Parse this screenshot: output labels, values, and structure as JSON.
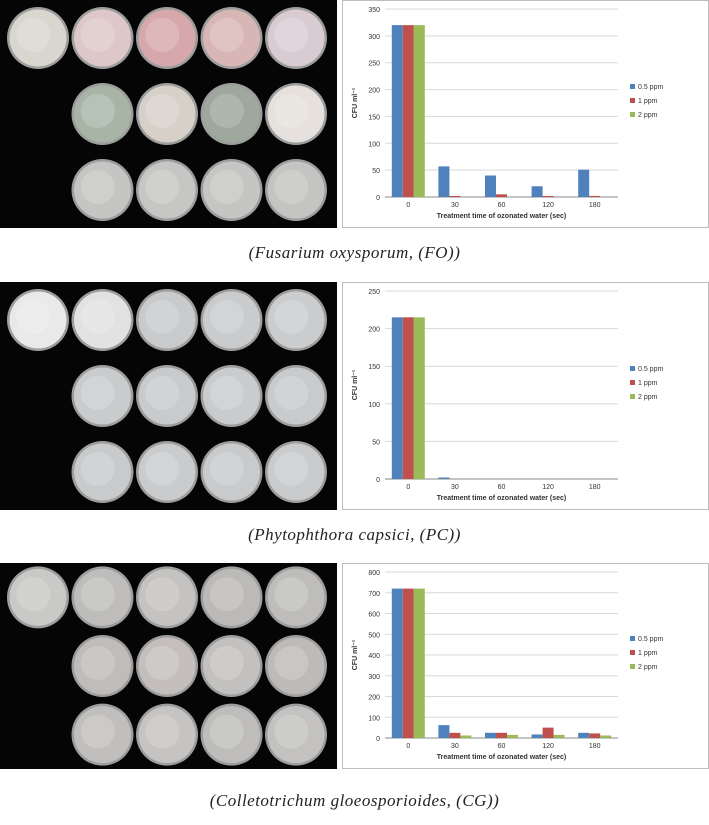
{
  "legend": [
    "0.5 ppm",
    "1 ppm",
    "2 ppm"
  ],
  "colors": {
    "series": [
      "#4f81bd",
      "#c0504d",
      "#9bbb59"
    ],
    "grid": "#d9d9d9",
    "plate_bg": "#050505"
  },
  "panels": [
    {
      "caption": "(Fusarium oxysporum, (FO))",
      "photo_icon": "petri-dish-plates-photo"
    },
    {
      "caption": "(Phytophthora capsici, (PC))",
      "photo_icon": "petri-dish-plates-photo"
    },
    {
      "caption": "(Colletotrichum gloeosporioides, (CG))",
      "photo_icon": "petri-dish-plates-photo"
    }
  ],
  "chart_data": [
    {
      "type": "bar",
      "categories": [
        "0",
        "30",
        "60",
        "120",
        "180"
      ],
      "ylabel": "CFU ml⁻¹",
      "xlabel": "Treatment time of ozonated water (sec)",
      "ylim": [
        0,
        350
      ],
      "yticks": [
        "0",
        "50",
        "100",
        "150",
        "200",
        "250",
        "300",
        "350"
      ],
      "grid": true,
      "legend_position": "right",
      "series": [
        {
          "name": "0.5 ppm",
          "values": [
            320,
            57,
            40,
            20,
            51
          ]
        },
        {
          "name": "1 ppm",
          "values": [
            320,
            2,
            5,
            2,
            2
          ]
        },
        {
          "name": "2 ppm",
          "values": [
            320,
            0,
            0,
            0,
            0
          ]
        }
      ]
    },
    {
      "type": "bar",
      "categories": [
        "0",
        "30",
        "60",
        "120",
        "180"
      ],
      "ylabel": "CFU ml⁻¹",
      "xlabel": "Treatment time of ozonated water (sec)",
      "ylim": [
        0,
        250
      ],
      "yticks": [
        "0",
        "50",
        "100",
        "150",
        "200",
        "250"
      ],
      "grid": true,
      "legend_position": "right",
      "series": [
        {
          "name": "0.5 ppm",
          "values": [
            215,
            2,
            0,
            0,
            0
          ]
        },
        {
          "name": "1 ppm",
          "values": [
            215,
            0,
            0,
            0,
            0
          ]
        },
        {
          "name": "2 ppm",
          "values": [
            215,
            0,
            0,
            0,
            0
          ]
        }
      ]
    },
    {
      "type": "bar",
      "categories": [
        "0",
        "30",
        "60",
        "120",
        "180"
      ],
      "ylabel": "CFU ml⁻¹",
      "xlabel": "Treatment time of ozonated water (sec)",
      "ylim": [
        0,
        800
      ],
      "yticks": [
        "0",
        "100",
        "200",
        "300",
        "400",
        "500",
        "600",
        "700",
        "800"
      ],
      "grid": true,
      "legend_position": "right",
      "series": [
        {
          "name": "0.5 ppm",
          "values": [
            720,
            62,
            25,
            17,
            25
          ]
        },
        {
          "name": "1 ppm",
          "values": [
            720,
            25,
            25,
            50,
            22
          ]
        },
        {
          "name": "2 ppm",
          "values": [
            720,
            12,
            15,
            15,
            12
          ]
        }
      ]
    }
  ]
}
